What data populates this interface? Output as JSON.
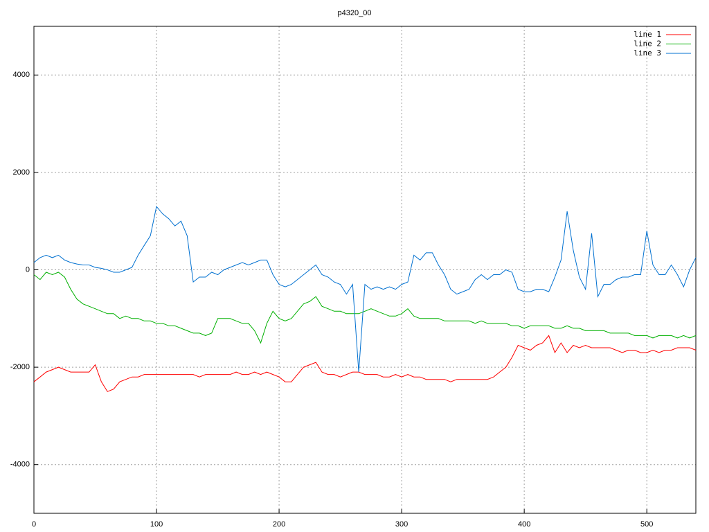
{
  "chart_data": {
    "type": "line",
    "title": "p4320_00",
    "x": [
      0,
      5,
      10,
      15,
      20,
      25,
      30,
      35,
      40,
      45,
      50,
      55,
      60,
      65,
      70,
      75,
      80,
      85,
      90,
      95,
      100,
      105,
      110,
      115,
      120,
      125,
      130,
      135,
      140,
      145,
      150,
      155,
      160,
      165,
      170,
      175,
      180,
      185,
      190,
      195,
      200,
      205,
      210,
      215,
      220,
      225,
      230,
      235,
      240,
      245,
      250,
      255,
      260,
      265,
      270,
      275,
      280,
      285,
      290,
      295,
      300,
      305,
      310,
      315,
      320,
      325,
      330,
      335,
      340,
      345,
      350,
      355,
      360,
      365,
      370,
      375,
      380,
      385,
      390,
      395,
      400,
      405,
      410,
      415,
      420,
      425,
      430,
      435,
      440,
      445,
      450,
      455,
      460,
      465,
      470,
      475,
      480,
      485,
      490,
      495,
      500,
      505,
      510,
      515,
      520,
      525,
      530,
      535,
      540
    ],
    "series": [
      {
        "name": "line 1",
        "color": "#ff0000",
        "values": [
          -2300,
          -2200,
          -2100,
          -2050,
          -2000,
          -2050,
          -2100,
          -2100,
          -2100,
          -2100,
          -1950,
          -2300,
          -2500,
          -2450,
          -2300,
          -2250,
          -2200,
          -2200,
          -2150,
          -2150,
          -2150,
          -2150,
          -2150,
          -2150,
          -2150,
          -2150,
          -2150,
          -2200,
          -2150,
          -2150,
          -2150,
          -2150,
          -2150,
          -2100,
          -2150,
          -2150,
          -2100,
          -2150,
          -2100,
          -2150,
          -2200,
          -2300,
          -2300,
          -2150,
          -2000,
          -1950,
          -1900,
          -2100,
          -2150,
          -2150,
          -2200,
          -2150,
          -2100,
          -2100,
          -2150,
          -2150,
          -2150,
          -2200,
          -2200,
          -2150,
          -2200,
          -2150,
          -2200,
          -2200,
          -2250,
          -2250,
          -2250,
          -2250,
          -2300,
          -2250,
          -2250,
          -2250,
          -2250,
          -2250,
          -2250,
          -2200,
          -2100,
          -2000,
          -1800,
          -1550,
          -1600,
          -1650,
          -1550,
          -1500,
          -1350,
          -1700,
          -1500,
          -1700,
          -1550,
          -1600,
          -1550,
          -1600,
          -1600,
          -1600,
          -1600,
          -1650,
          -1700,
          -1650,
          -1650,
          -1700,
          -1700,
          -1650,
          -1700,
          -1650,
          -1650,
          -1600,
          -1600,
          -1600,
          -1650
        ]
      },
      {
        "name": "line 2",
        "color": "#00b000",
        "values": [
          -100,
          -200,
          -50,
          -100,
          -50,
          -150,
          -400,
          -600,
          -700,
          -750,
          -800,
          -850,
          -900,
          -900,
          -1000,
          -950,
          -1000,
          -1000,
          -1050,
          -1050,
          -1100,
          -1100,
          -1150,
          -1150,
          -1200,
          -1250,
          -1300,
          -1300,
          -1350,
          -1300,
          -1000,
          -1000,
          -1000,
          -1050,
          -1100,
          -1100,
          -1250,
          -1500,
          -1100,
          -850,
          -1000,
          -1050,
          -1000,
          -850,
          -700,
          -650,
          -550,
          -750,
          -800,
          -850,
          -850,
          -900,
          -900,
          -900,
          -850,
          -800,
          -850,
          -900,
          -950,
          -950,
          -900,
          -800,
          -950,
          -1000,
          -1000,
          -1000,
          -1000,
          -1050,
          -1050,
          -1050,
          -1050,
          -1050,
          -1100,
          -1050,
          -1100,
          -1100,
          -1100,
          -1100,
          -1150,
          -1150,
          -1200,
          -1150,
          -1150,
          -1150,
          -1150,
          -1200,
          -1200,
          -1150,
          -1200,
          -1200,
          -1250,
          -1250,
          -1250,
          -1250,
          -1300,
          -1300,
          -1300,
          -1300,
          -1350,
          -1350,
          -1350,
          -1400,
          -1350,
          -1350,
          -1350,
          -1400,
          -1350,
          -1400,
          -1350
        ]
      },
      {
        "name": "line 3",
        "color": "#0070d0",
        "values": [
          150,
          250,
          300,
          250,
          300,
          200,
          150,
          120,
          100,
          100,
          50,
          30,
          0,
          -50,
          -50,
          0,
          50,
          300,
          500,
          700,
          1300,
          1150,
          1050,
          900,
          1000,
          700,
          -250,
          -150,
          -150,
          -50,
          -100,
          0,
          50,
          100,
          150,
          100,
          150,
          200,
          200,
          -100,
          -300,
          -350,
          -300,
          -200,
          -100,
          0,
          100,
          -100,
          -150,
          -250,
          -300,
          -500,
          -300,
          -2100,
          -300,
          -400,
          -350,
          -400,
          -350,
          -400,
          -300,
          -250,
          300,
          200,
          350,
          350,
          100,
          -100,
          -400,
          -500,
          -450,
          -400,
          -200,
          -100,
          -200,
          -100,
          -100,
          0,
          -50,
          -400,
          -450,
          -450,
          -400,
          -400,
          -450,
          -150,
          200,
          1200,
          400,
          -150,
          -400,
          750,
          -550,
          -300,
          -300,
          -200,
          -150,
          -150,
          -100,
          -100,
          800,
          100,
          -100,
          -100,
          100,
          -100,
          -350,
          0,
          250
        ]
      }
    ],
    "xlim": [
      0,
      540
    ],
    "ylim": [
      -5000,
      5000
    ],
    "xticks": [
      0,
      100,
      200,
      300,
      400,
      500
    ],
    "yticks": [
      -4000,
      -2000,
      0,
      2000,
      4000
    ],
    "grid": true,
    "legend": "top-right"
  }
}
